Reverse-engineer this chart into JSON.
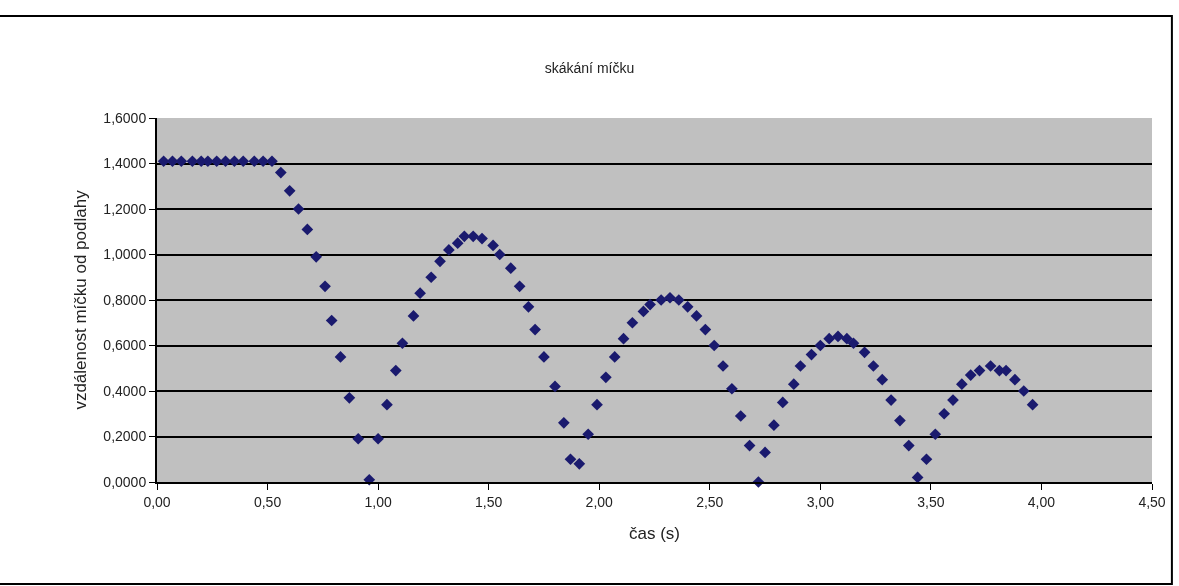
{
  "chart_data": {
    "type": "scatter",
    "title": "skákání míčku",
    "xlabel": "čas (s)",
    "ylabel": "vzdálenost míčku od podlahy",
    "x": [
      0.03,
      0.07,
      0.11,
      0.16,
      0.2,
      0.23,
      0.27,
      0.31,
      0.35,
      0.39,
      0.44,
      0.48,
      0.52,
      0.56,
      0.6,
      0.64,
      0.68,
      0.72,
      0.76,
      0.79,
      0.83,
      0.87,
      0.91,
      0.96,
      1.0,
      1.04,
      1.08,
      1.11,
      1.16,
      1.19,
      1.24,
      1.28,
      1.32,
      1.36,
      1.39,
      1.43,
      1.47,
      1.52,
      1.55,
      1.6,
      1.64,
      1.68,
      1.71,
      1.75,
      1.8,
      1.84,
      1.87,
      1.91,
      1.95,
      1.99,
      2.03,
      2.07,
      2.11,
      2.15,
      2.2,
      2.23,
      2.28,
      2.32,
      2.36,
      2.4,
      2.44,
      2.48,
      2.52,
      2.56,
      2.6,
      2.64,
      2.68,
      2.72,
      2.75,
      2.79,
      2.83,
      2.88,
      2.91,
      2.96,
      3.0,
      3.04,
      3.08,
      3.12,
      3.15,
      3.2,
      3.24,
      3.28,
      3.32,
      3.36,
      3.4,
      3.44,
      3.48,
      3.52,
      3.56,
      3.6,
      3.64,
      3.68,
      3.72,
      3.77,
      3.81,
      3.84,
      3.88,
      3.92,
      3.96
    ],
    "series": [
      {
        "color": "#1a1a6e",
        "values": [
          1.41,
          1.41,
          1.41,
          1.41,
          1.41,
          1.41,
          1.41,
          1.41,
          1.41,
          1.41,
          1.41,
          1.41,
          1.41,
          1.36,
          1.28,
          1.2,
          1.11,
          0.99,
          0.86,
          0.71,
          0.55,
          0.37,
          0.19,
          0.01,
          0.19,
          0.34,
          0.49,
          0.61,
          0.73,
          0.83,
          0.9,
          0.97,
          1.02,
          1.05,
          1.08,
          1.08,
          1.07,
          1.04,
          1.0,
          0.94,
          0.86,
          0.77,
          0.67,
          0.55,
          0.42,
          0.26,
          0.1,
          0.08,
          0.21,
          0.34,
          0.46,
          0.55,
          0.63,
          0.7,
          0.75,
          0.78,
          0.8,
          0.81,
          0.8,
          0.77,
          0.73,
          0.67,
          0.6,
          0.51,
          0.41,
          0.29,
          0.16,
          0.0,
          0.13,
          0.25,
          0.35,
          0.43,
          0.51,
          0.56,
          0.6,
          0.63,
          0.64,
          0.63,
          0.61,
          0.57,
          0.51,
          0.45,
          0.36,
          0.27,
          0.16,
          0.02,
          0.1,
          0.21,
          0.3,
          0.36,
          0.43,
          0.47,
          0.49,
          0.51,
          0.49,
          0.49,
          0.45,
          0.4,
          0.34
        ]
      }
    ],
    "xlim": [
      0,
      4.5
    ],
    "xticks": [
      {
        "value": 0,
        "label": "0,00"
      },
      {
        "value": 0.5,
        "label": "0,50"
      },
      {
        "value": 1,
        "label": "1,00"
      },
      {
        "value": 1.5,
        "label": "1,50"
      },
      {
        "value": 2,
        "label": "2,00"
      },
      {
        "value": 2.5,
        "label": "2,50"
      },
      {
        "value": 3,
        "label": "3,00"
      },
      {
        "value": 3.5,
        "label": "3,50"
      },
      {
        "value": 4,
        "label": "4,00"
      },
      {
        "value": 4.5,
        "label": "4,50"
      }
    ],
    "ylim": [
      0,
      1.6
    ],
    "yticks": [
      {
        "value": 0,
        "label": "0,0000"
      },
      {
        "value": 0.2,
        "label": "0,2000"
      },
      {
        "value": 0.4,
        "label": "0,4000"
      },
      {
        "value": 0.6,
        "label": "0,6000"
      },
      {
        "value": 0.8,
        "label": "0,8000"
      },
      {
        "value": 1,
        "label": "1,0000"
      },
      {
        "value": 1.2,
        "label": "1,2000"
      },
      {
        "value": 1.4,
        "label": "1,4000"
      },
      {
        "value": 1.6,
        "label": "1,6000"
      }
    ],
    "grid": "y",
    "marker": "diamond"
  }
}
